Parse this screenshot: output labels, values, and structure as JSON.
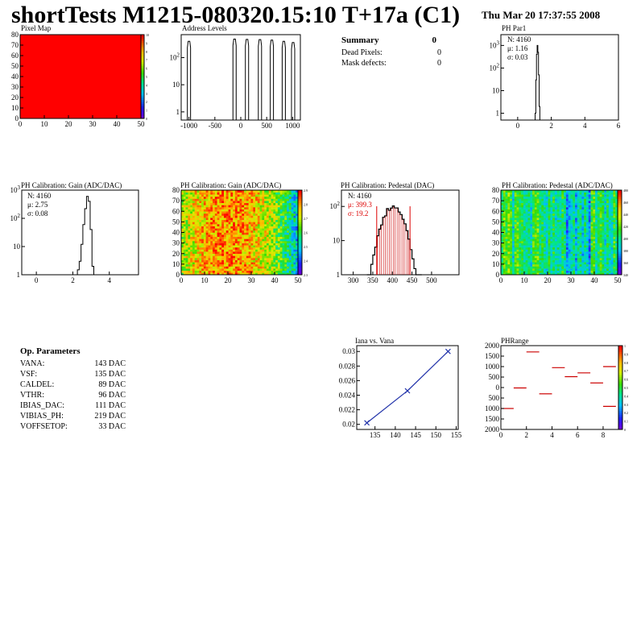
{
  "header": {
    "title": "shortTests M1215-080320.15:10 T+17a (C1)",
    "date": "Thu Mar 20 17:37:55 2008"
  },
  "summary": {
    "title": "Summary",
    "title_value": "0",
    "rows": [
      {
        "label": "Dead Pixels:",
        "value": "0"
      },
      {
        "label": "Mask defects:",
        "value": "0"
      }
    ]
  },
  "op_params": {
    "title": "Op. Parameters",
    "rows": [
      {
        "label": "VANA:",
        "value": "143 DAC"
      },
      {
        "label": "VSF:",
        "value": "135 DAC"
      },
      {
        "label": "CALDEL:",
        "value": "89 DAC"
      },
      {
        "label": "VTHR:",
        "value": "96 DAC"
      },
      {
        "label": "IBIAS_DAC:",
        "value": "111 DAC"
      },
      {
        "label": "VIBIAS_PH:",
        "value": "219 DAC"
      },
      {
        "label": "VOFFSETOP:",
        "value": "33 DAC"
      }
    ]
  },
  "chart_data": [
    {
      "id": "pixel_map",
      "type": "heatmap",
      "title": "Pixel Map",
      "x_ticks": [
        "0",
        "10",
        "20",
        "30",
        "40",
        "50"
      ],
      "y_ticks": [
        "0",
        "10",
        "20",
        "30",
        "40",
        "50",
        "60",
        "70",
        "80"
      ],
      "xlim": [
        0,
        52
      ],
      "ylim": [
        0,
        80
      ],
      "uniform_value": 10,
      "palette_ticks": [
        "0",
        "1",
        "2",
        "3",
        "4",
        "5",
        "6",
        "7",
        "8",
        "9",
        "10"
      ]
    },
    {
      "id": "address_levels",
      "type": "bar",
      "title": "Address Levels",
      "log_y": true,
      "x_ticks": [
        "-1000",
        "-500",
        "0",
        "500",
        "1000"
      ],
      "xlim": [
        -1150,
        1150
      ],
      "y_ticks": [
        "1",
        "10",
        "10^2"
      ],
      "ylim_log": [
        0.5,
        700
      ],
      "peaks": [
        {
          "x": -1000,
          "h": 400
        },
        {
          "x": -120,
          "h": 480
        },
        {
          "x": 120,
          "h": 470
        },
        {
          "x": 370,
          "h": 460
        },
        {
          "x": 600,
          "h": 440
        },
        {
          "x": 830,
          "h": 400
        },
        {
          "x": 1010,
          "h": 360
        }
      ]
    },
    {
      "id": "ph_par1",
      "type": "bar",
      "title": "PH Par1",
      "log_y": true,
      "x_ticks": [
        "0",
        "2",
        "4",
        "6"
      ],
      "xlim": [
        -1,
        6
      ],
      "y_ticks": [
        "1",
        "10",
        "10^2",
        "10^3"
      ],
      "ylim_log": [
        0.5,
        3000
      ],
      "stats": {
        "N": "N: 4160",
        "mu": "μ: 1.16",
        "sigma": "σ: 0.03"
      },
      "bins": [
        {
          "x": 1.06,
          "h": 1
        },
        {
          "x": 1.1,
          "h": 30
        },
        {
          "x": 1.14,
          "h": 400
        },
        {
          "x": 1.18,
          "h": 1000
        },
        {
          "x": 1.22,
          "h": 500
        },
        {
          "x": 1.26,
          "h": 50
        },
        {
          "x": 1.3,
          "h": 2
        }
      ]
    },
    {
      "id": "ph_gain_hist",
      "type": "bar",
      "title": "PH Calibration: Gain (ADC/DAC)",
      "log_y": true,
      "x_ticks": [
        "0",
        "2",
        "4"
      ],
      "xlim": [
        -0.8,
        5.6
      ],
      "y_ticks": [
        "1",
        "10",
        "10^2",
        "10^3"
      ],
      "ylim_log": [
        1,
        1000
      ],
      "stats": {
        "N": "N: 4160",
        "mu": "μ: 2.75",
        "sigma": "σ: 0.08"
      },
      "bins": [
        {
          "x": 2.3,
          "h": 1.5
        },
        {
          "x": 2.4,
          "h": 3
        },
        {
          "x": 2.5,
          "h": 12
        },
        {
          "x": 2.6,
          "h": 60
        },
        {
          "x": 2.7,
          "h": 220
        },
        {
          "x": 2.8,
          "h": 600
        },
        {
          "x": 2.9,
          "h": 400
        },
        {
          "x": 3.0,
          "h": 40
        },
        {
          "x": 3.1,
          "h": 2
        }
      ]
    },
    {
      "id": "ph_gain_map",
      "type": "heatmap",
      "title": "PH Calibration: Gain (ADC/DAC)",
      "x_ticks": [
        "0",
        "10",
        "20",
        "30",
        "40",
        "50"
      ],
      "y_ticks": [
        "0",
        "10",
        "20",
        "30",
        "40",
        "50",
        "60",
        "70",
        "80"
      ],
      "xlim": [
        0,
        52
      ],
      "ylim": [
        0,
        80
      ],
      "palette_ticks": [
        "2.3",
        "2.4",
        "2.5",
        "2.6",
        "2.7",
        "2.8",
        "2.9"
      ]
    },
    {
      "id": "ph_pedestal_hist",
      "type": "bar",
      "title": "PH Calibration: Pedestal (DAC)",
      "log_y": true,
      "x_ticks": [
        "300",
        "350",
        "400",
        "450",
        "500"
      ],
      "xlim": [
        270,
        570
      ],
      "y_ticks": [
        "1",
        "10",
        "10^2"
      ],
      "ylim_log": [
        1,
        300
      ],
      "stats": {
        "N": "N: 4160",
        "mu": "μ: 399.3",
        "sigma": "σ: 19.2"
      },
      "fit_range": [
        360,
        445
      ],
      "mean": 399.3,
      "sigma": 19.2,
      "peak": 100
    },
    {
      "id": "ph_pedestal_map",
      "type": "heatmap",
      "title": "PH Calibration: Pedestal (ADC/DAC)",
      "x_ticks": [
        "0",
        "10",
        "20",
        "30",
        "40",
        "50"
      ],
      "y_ticks": [
        "0",
        "10",
        "20",
        "30",
        "40",
        "50",
        "60",
        "70",
        "80"
      ],
      "xlim": [
        0,
        52
      ],
      "ylim": [
        0,
        80
      ],
      "palette_ticks": [
        "340",
        "360",
        "380",
        "400",
        "420",
        "440",
        "460",
        "480"
      ]
    },
    {
      "id": "iana_vana",
      "type": "line",
      "title": "Iana vs. Vana",
      "x": [
        133,
        143,
        153
      ],
      "y": [
        0.0202,
        0.0246,
        0.03
      ],
      "xlim": [
        130.5,
        155.5
      ],
      "ylim": [
        0.0193,
        0.0308
      ],
      "x_ticks": [
        "135",
        "140",
        "145",
        "150",
        "155"
      ],
      "y_ticks": [
        "0.02",
        "0.022",
        "0.024",
        "0.026",
        "0.028",
        "0.03"
      ]
    },
    {
      "id": "ph_range",
      "type": "scatter",
      "title": "PHRange",
      "x_ticks": [
        "0",
        "2",
        "4",
        "6",
        "8"
      ],
      "xlim": [
        0,
        9.2
      ],
      "y_ticks": [
        "2000",
        "1500",
        "1000",
        "500",
        "0",
        "500",
        "1000",
        "1500",
        "2000"
      ],
      "ylim": [
        -2000,
        2000
      ],
      "segments": [
        {
          "x0": 0,
          "x1": 1,
          "y": -1000
        },
        {
          "x0": 1,
          "x1": 2,
          "y": -20
        },
        {
          "x0": 2,
          "x1": 3,
          "y": 1700
        },
        {
          "x0": 3,
          "x1": 4,
          "y": -300
        },
        {
          "x0": 4,
          "x1": 5,
          "y": 950
        },
        {
          "x0": 5,
          "x1": 6,
          "y": 520
        },
        {
          "x0": 6,
          "x1": 7,
          "y": 700
        },
        {
          "x0": 7,
          "x1": 8,
          "y": 220
        },
        {
          "x0": 8,
          "x1": 9,
          "y": 1000
        },
        {
          "x0": 8,
          "x1": 9,
          "y": -900
        }
      ],
      "palette_ticks": [
        "0",
        "0.1",
        "0.2",
        "0.3",
        "0.4",
        "0.5",
        "0.6",
        "0.7",
        "0.8",
        "0.9",
        "1"
      ]
    }
  ]
}
